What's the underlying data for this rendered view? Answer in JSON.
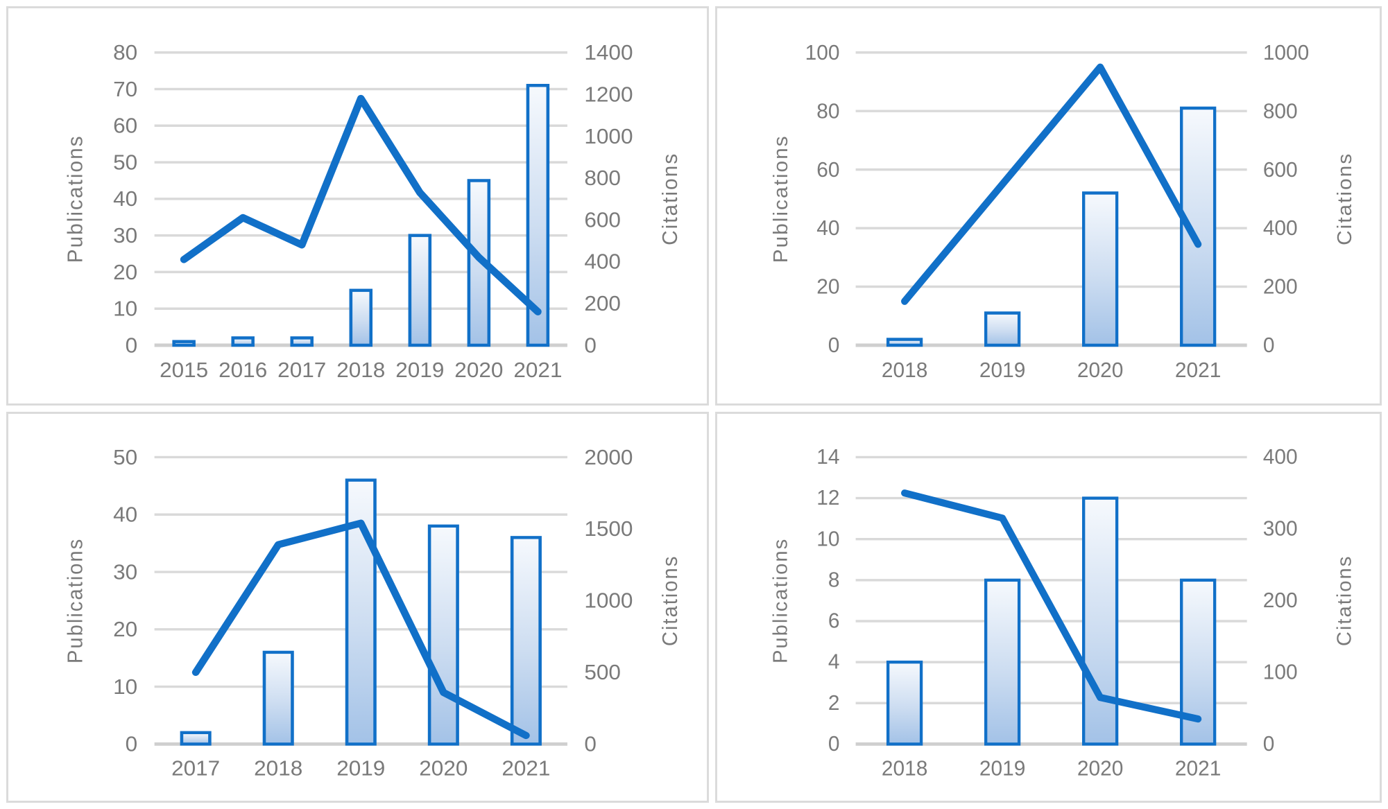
{
  "figure": {
    "description": "Four publications-vs-citations combo charts arranged in a 2x2 grid",
    "legend": "none",
    "title": ""
  },
  "colors": {
    "accent": "#1170c8",
    "bar_fill_top": "#f6f9fd",
    "bar_fill_mid": "#cdddf1",
    "bar_fill_bottom": "#a3c2e7",
    "gridline": "#d9d9d9",
    "axis_line": "#cfcfcf",
    "axis_text": "#7a7a7a",
    "panel_border": "#dbdbdb",
    "background": "#ffffff"
  },
  "chart_data": [
    {
      "type": "bar+line",
      "position": "top-left",
      "categories": [
        "2015",
        "2016",
        "2017",
        "2018",
        "2019",
        "2020",
        "2021"
      ],
      "series": [
        {
          "name": "Publications",
          "type": "bar",
          "axis": "left",
          "values": [
            1,
            2,
            2,
            15,
            30,
            45,
            71
          ]
        },
        {
          "name": "Citations",
          "type": "line",
          "axis": "right",
          "values": [
            410,
            610,
            480,
            1180,
            730,
            420,
            160
          ]
        }
      ],
      "left_axis": {
        "label": "Publications",
        "min": 0,
        "max": 80,
        "step": 10,
        "ticks": [
          "0",
          "10",
          "20",
          "30",
          "40",
          "50",
          "60",
          "70",
          "80"
        ]
      },
      "right_axis": {
        "label": "Citations",
        "min": 0,
        "max": 1400,
        "step": 200,
        "ticks": [
          "0",
          "200",
          "400",
          "600",
          "800",
          "1000",
          "1200",
          "1400"
        ]
      },
      "grid": true
    },
    {
      "type": "bar+line",
      "position": "top-right",
      "categories": [
        "2018",
        "2019",
        "2020",
        "2021"
      ],
      "series": [
        {
          "name": "Publications",
          "type": "bar",
          "axis": "left",
          "values": [
            2,
            11,
            52,
            81
          ]
        },
        {
          "name": "Citations",
          "type": "line",
          "axis": "right",
          "values": [
            150,
            550,
            950,
            345
          ]
        }
      ],
      "left_axis": {
        "label": "Publications",
        "min": 0,
        "max": 100,
        "step": 20,
        "ticks": [
          "0",
          "20",
          "40",
          "60",
          "80",
          "100"
        ]
      },
      "right_axis": {
        "label": "Citations",
        "min": 0,
        "max": 1000,
        "step": 200,
        "ticks": [
          "0",
          "200",
          "400",
          "600",
          "800",
          "1000"
        ]
      },
      "grid": true
    },
    {
      "type": "bar+line",
      "position": "bottom-left",
      "categories": [
        "2017",
        "2018",
        "2019",
        "2020",
        "2021"
      ],
      "series": [
        {
          "name": "Publications",
          "type": "bar",
          "axis": "left",
          "values": [
            2,
            16,
            46,
            38,
            36
          ]
        },
        {
          "name": "Citations",
          "type": "line",
          "axis": "right",
          "values": [
            500,
            1390,
            1540,
            360,
            60
          ]
        }
      ],
      "left_axis": {
        "label": "Publications",
        "min": 0,
        "max": 50,
        "step": 10,
        "ticks": [
          "0",
          "10",
          "20",
          "30",
          "40",
          "50"
        ]
      },
      "right_axis": {
        "label": "Citations",
        "min": 0,
        "max": 2000,
        "step": 500,
        "ticks": [
          "0",
          "500",
          "1000",
          "1500",
          "2000"
        ]
      },
      "grid": true
    },
    {
      "type": "bar+line",
      "position": "bottom-right",
      "categories": [
        "2018",
        "2019",
        "2020",
        "2021"
      ],
      "series": [
        {
          "name": "Publications",
          "type": "bar",
          "axis": "left",
          "values": [
            4,
            8,
            12,
            8
          ]
        },
        {
          "name": "Citations",
          "type": "line",
          "axis": "right",
          "values": [
            350,
            315,
            65,
            35
          ]
        }
      ],
      "left_axis": {
        "label": "Publications",
        "min": 0,
        "max": 14,
        "step": 2,
        "ticks": [
          "0",
          "2",
          "4",
          "6",
          "8",
          "10",
          "12",
          "14"
        ]
      },
      "right_axis": {
        "label": "Citations",
        "min": 0,
        "max": 400,
        "step": 100,
        "ticks": [
          "0",
          "100",
          "200",
          "300",
          "400"
        ]
      },
      "grid": true
    }
  ]
}
